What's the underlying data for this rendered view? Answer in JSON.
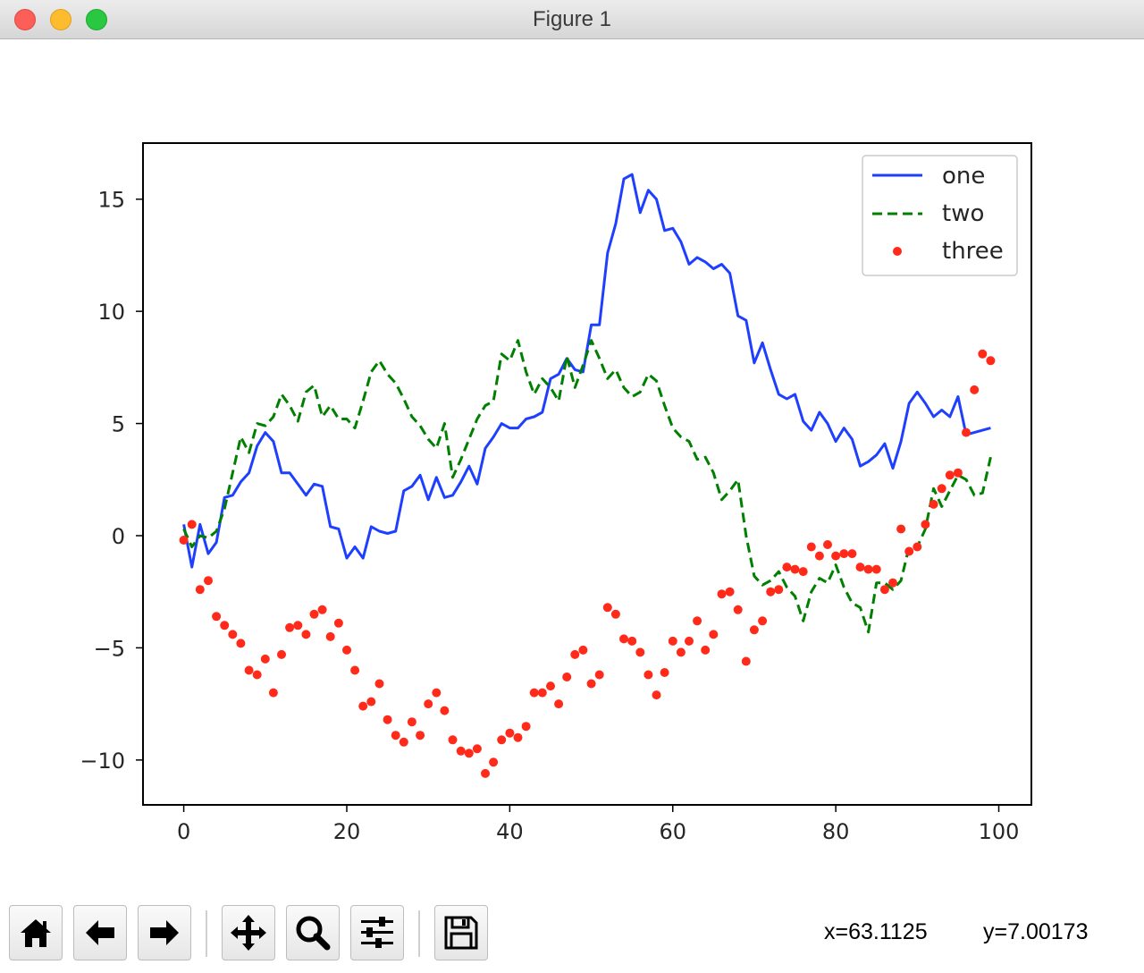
{
  "window": {
    "title": "Figure 1",
    "buttons": [
      "close",
      "minimize",
      "zoom"
    ]
  },
  "toolbar": {
    "buttons": [
      {
        "name": "home-button",
        "icon": "home-icon"
      },
      {
        "name": "back-button",
        "icon": "arrow-left-icon"
      },
      {
        "name": "forward-button",
        "icon": "arrow-right-icon"
      },
      {
        "name": "pan-button",
        "icon": "move-icon"
      },
      {
        "name": "zoom-button",
        "icon": "magnifier-icon"
      },
      {
        "name": "configure-subplots-button",
        "icon": "sliders-icon"
      },
      {
        "name": "save-button",
        "icon": "floppy-disk-icon"
      }
    ]
  },
  "status": {
    "x_readout": "x=63.1125",
    "y_readout": "y=7.00173"
  },
  "chart_data": {
    "type": "line",
    "title": "",
    "xlabel": "",
    "ylabel": "",
    "xlim": [
      -5,
      104
    ],
    "ylim": [
      -12,
      17.5
    ],
    "xticks": [
      0,
      20,
      40,
      60,
      80,
      100
    ],
    "yticks": [
      -10,
      -5,
      0,
      5,
      10,
      15
    ],
    "ytick_labels": [
      "−10",
      "−5",
      "0",
      "5",
      "10",
      "15"
    ],
    "grid": false,
    "legend_position": "top-right",
    "x": [
      0,
      1,
      2,
      3,
      4,
      5,
      6,
      7,
      8,
      9,
      10,
      11,
      12,
      13,
      14,
      15,
      16,
      17,
      18,
      19,
      20,
      21,
      22,
      23,
      24,
      25,
      26,
      27,
      28,
      29,
      30,
      31,
      32,
      33,
      34,
      35,
      36,
      37,
      38,
      39,
      40,
      41,
      42,
      43,
      44,
      45,
      46,
      47,
      48,
      49,
      50,
      51,
      52,
      53,
      54,
      55,
      56,
      57,
      58,
      59,
      60,
      61,
      62,
      63,
      64,
      65,
      66,
      67,
      68,
      69,
      70,
      71,
      72,
      73,
      74,
      75,
      76,
      77,
      78,
      79,
      80,
      81,
      82,
      83,
      84,
      85,
      86,
      87,
      88,
      89,
      90,
      91,
      92,
      93,
      94,
      95,
      96,
      97,
      98,
      99
    ],
    "series": [
      {
        "name": "one",
        "style": "solid",
        "color": "#1f3fff",
        "values": [
          0.5,
          -1.4,
          0.5,
          -0.8,
          -0.3,
          1.7,
          1.8,
          2.4,
          2.8,
          4.0,
          4.6,
          4.2,
          2.8,
          2.8,
          2.3,
          1.8,
          2.3,
          2.2,
          0.4,
          0.3,
          -1.0,
          -0.5,
          -1.0,
          0.4,
          0.2,
          0.1,
          0.2,
          2.0,
          2.2,
          2.7,
          1.6,
          2.6,
          1.7,
          1.8,
          2.4,
          3.1,
          2.3,
          3.9,
          4.4,
          5.0,
          4.8,
          4.8,
          5.2,
          5.3,
          5.5,
          7.0,
          7.2,
          7.9,
          7.4,
          7.3,
          9.4,
          9.4,
          12.6,
          13.9,
          15.9,
          16.1,
          14.4,
          15.4,
          15.0,
          13.6,
          13.7,
          13.1,
          12.1,
          12.4,
          12.2,
          11.9,
          12.1,
          11.7,
          9.8,
          9.6,
          7.7,
          8.6,
          7.4,
          6.3,
          6.1,
          6.3,
          5.1,
          4.7,
          5.5,
          5.0,
          4.2,
          4.8,
          4.3,
          3.1,
          3.3,
          3.6,
          4.1,
          3.0,
          4.2,
          5.9,
          6.4,
          5.9,
          5.3,
          5.6,
          5.3,
          6.2,
          4.5,
          4.6,
          4.7,
          4.8
        ]
      },
      {
        "name": "two",
        "style": "dashed",
        "color": "#008000",
        "values": [
          0.3,
          -0.5,
          0.0,
          -0.1,
          0.2,
          1.2,
          2.8,
          4.4,
          3.7,
          5.0,
          4.9,
          5.3,
          6.3,
          5.8,
          5.1,
          6.4,
          6.7,
          5.3,
          5.8,
          5.2,
          5.2,
          4.8,
          6.0,
          7.3,
          7.8,
          7.2,
          6.8,
          6.1,
          5.3,
          4.9,
          4.3,
          3.9,
          5.0,
          2.6,
          3.4,
          4.3,
          5.2,
          5.8,
          6.0,
          8.1,
          7.8,
          8.7,
          7.3,
          6.3,
          7.0,
          6.6,
          6.0,
          8.0,
          6.6,
          7.6,
          8.7,
          7.9,
          7.0,
          7.4,
          6.6,
          6.2,
          6.4,
          7.2,
          6.9,
          5.8,
          4.8,
          4.4,
          4.2,
          3.4,
          3.5,
          2.8,
          1.6,
          2.0,
          2.5,
          0.0,
          -1.8,
          -2.2,
          -2.0,
          -1.6,
          -2.3,
          -2.7,
          -3.8,
          -2.5,
          -1.9,
          -2.1,
          -1.3,
          -2.3,
          -3.0,
          -3.2,
          -4.3,
          -2.1,
          -2.1,
          -2.4,
          -2.0,
          -0.5,
          -0.5,
          0.3,
          2.1,
          1.3,
          2.0,
          2.7,
          2.5,
          1.8,
          1.9,
          3.5
        ]
      },
      {
        "name": "three",
        "style": "dots",
        "color": "#ff2a1a",
        "values": [
          -0.2,
          0.5,
          -2.4,
          -2.0,
          -3.6,
          -4.0,
          -4.4,
          -4.8,
          -6.0,
          -6.2,
          -5.5,
          -7.0,
          -5.3,
          -4.1,
          -4.0,
          -4.4,
          -3.5,
          -3.3,
          -4.5,
          -3.9,
          -5.1,
          -6.0,
          -7.6,
          -7.4,
          -6.6,
          -8.2,
          -8.9,
          -9.2,
          -8.3,
          -8.9,
          -7.5,
          -7.0,
          -7.8,
          -9.1,
          -9.6,
          -9.7,
          -9.5,
          -10.6,
          -10.1,
          -9.1,
          -8.8,
          -9.0,
          -8.5,
          -7.0,
          -7.0,
          -6.7,
          -7.5,
          -6.3,
          -5.3,
          -5.1,
          -6.6,
          -6.2,
          -3.2,
          -3.5,
          -4.6,
          -4.7,
          -5.2,
          -6.2,
          -7.1,
          -6.1,
          -4.7,
          -5.2,
          -4.7,
          -3.8,
          -5.1,
          -4.4,
          -2.6,
          -2.5,
          -3.3,
          -5.6,
          -4.2,
          -3.8,
          -2.5,
          -2.4,
          -1.4,
          -1.5,
          -1.6,
          -0.5,
          -0.9,
          -0.4,
          -0.9,
          -0.8,
          -0.8,
          -1.4,
          -1.5,
          -1.5,
          -2.4,
          -2.1,
          0.3,
          -0.7,
          -0.5,
          0.5,
          1.4,
          2.1,
          2.7,
          2.8,
          4.6,
          6.5,
          8.1,
          7.8
        ]
      }
    ]
  }
}
